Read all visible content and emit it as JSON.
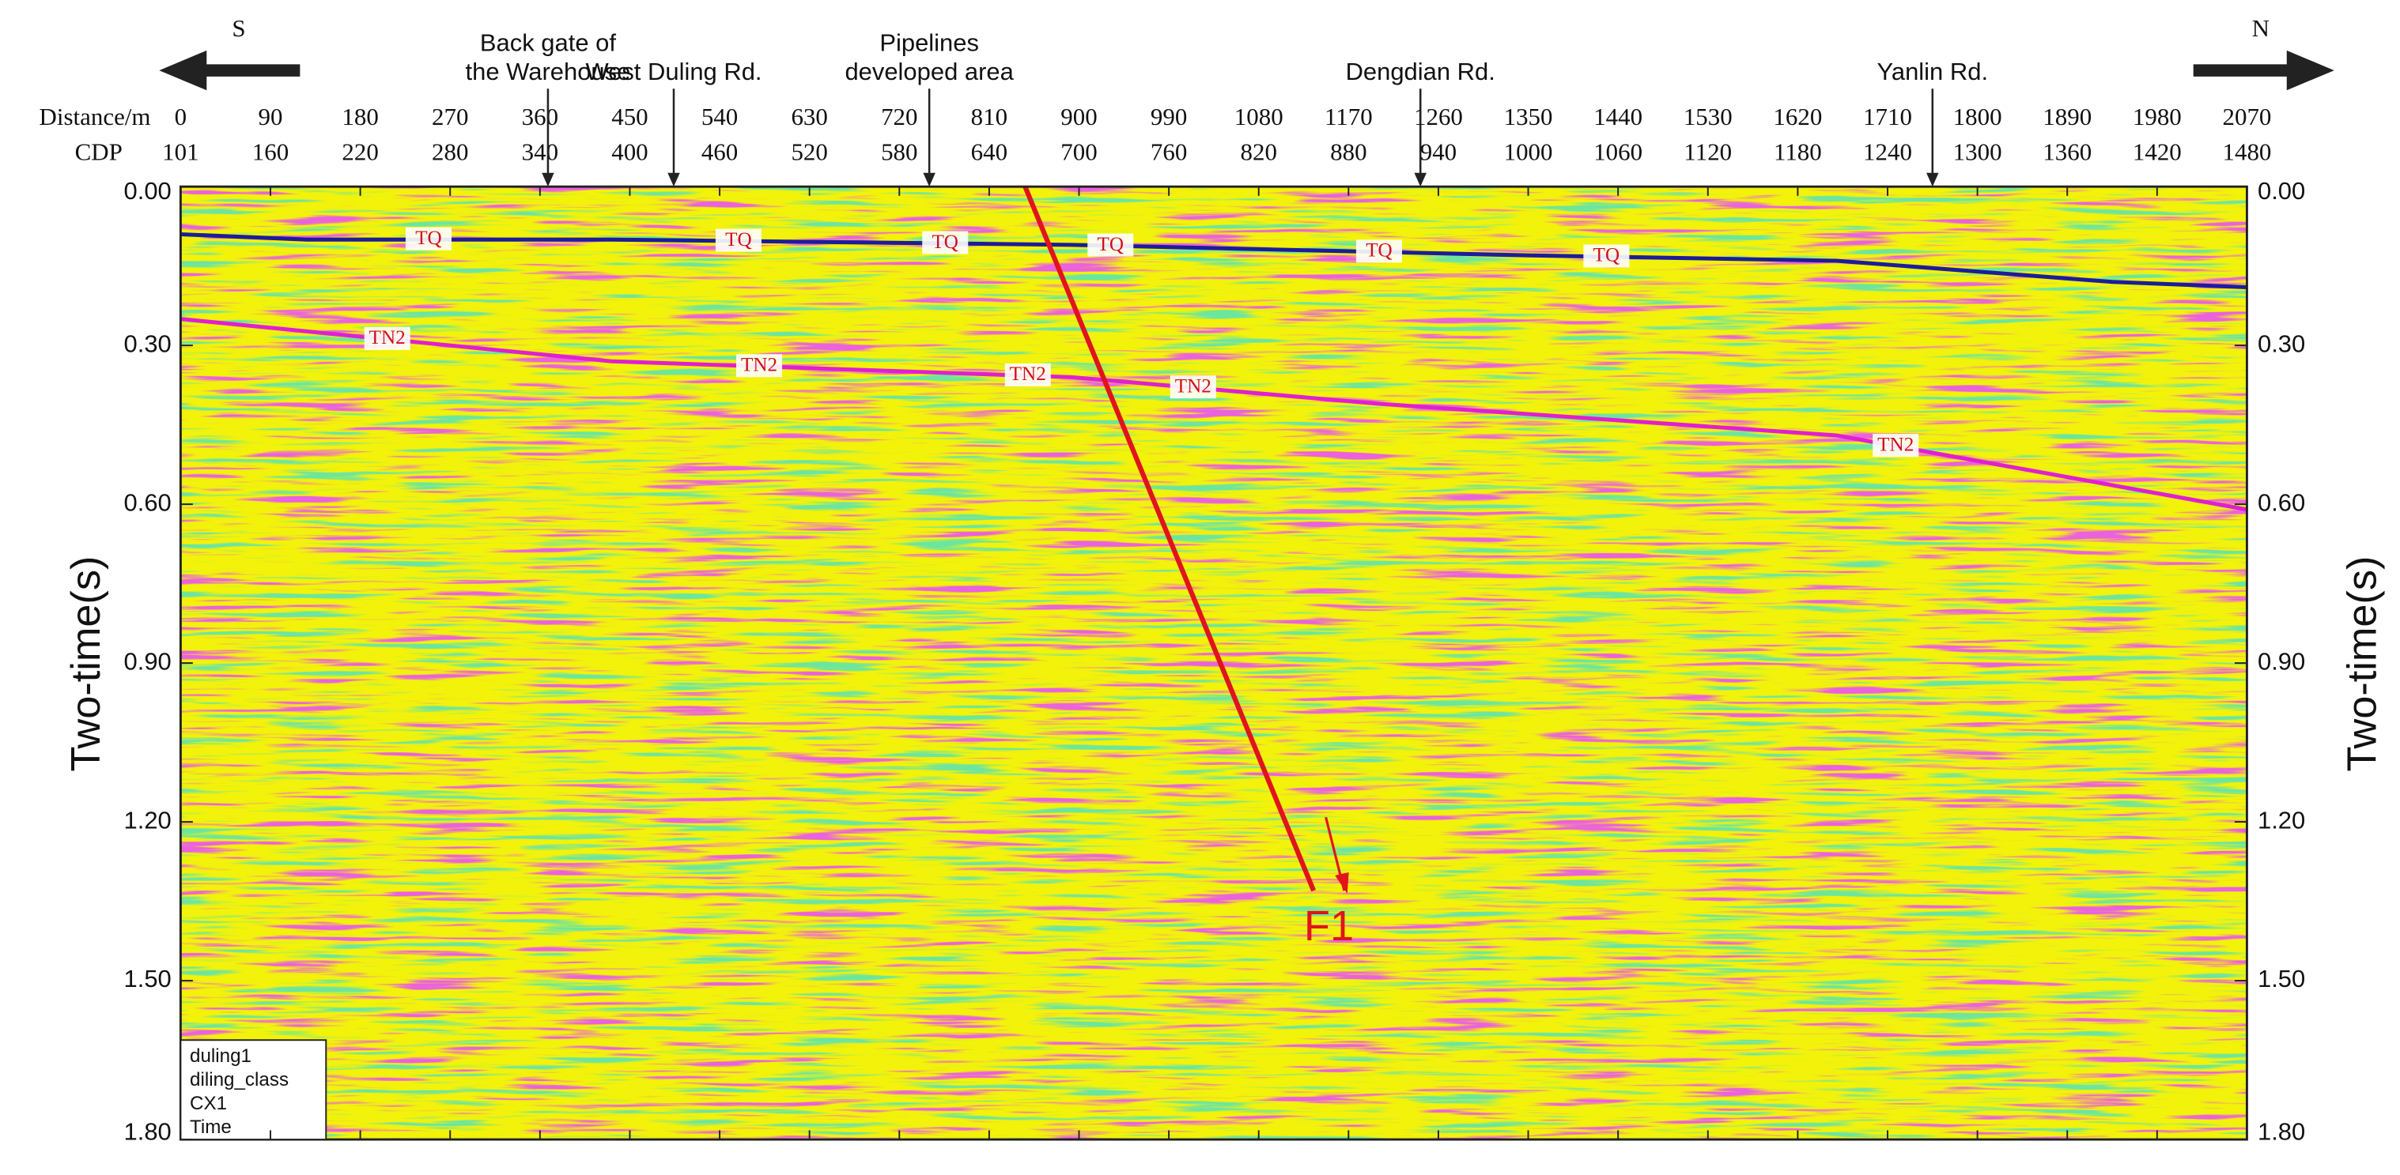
{
  "chart_data": {
    "type": "seismic-section",
    "direction_labels": {
      "left": "S",
      "right": "N"
    },
    "x_label": "Distance/m",
    "cdp_label": "CDP",
    "y_label": "Two-time(s)",
    "xlim": [
      0,
      2070
    ],
    "xticks": [
      0,
      90,
      180,
      270,
      360,
      450,
      540,
      630,
      720,
      810,
      900,
      990,
      1080,
      1170,
      1260,
      1350,
      1440,
      1530,
      1620,
      1710,
      1800,
      1890,
      1980,
      2070
    ],
    "cdp_ticks": [
      101,
      160,
      220,
      280,
      340,
      400,
      460,
      520,
      580,
      640,
      700,
      760,
      820,
      880,
      940,
      1000,
      1060,
      1120,
      1180,
      1240,
      1300,
      1360,
      1420,
      1480
    ],
    "ylim": [
      0,
      1.8
    ],
    "y_reversed": true,
    "yticks": [
      {
        "value": 0,
        "label": "0.00"
      },
      {
        "value": 0.3,
        "label": "0.30"
      },
      {
        "value": 0.6,
        "label": "0.60"
      },
      {
        "value": 0.9,
        "label": "0.90"
      },
      {
        "value": 1.2,
        "label": "1.20"
      },
      {
        "value": 1.5,
        "label": "1.50"
      },
      {
        "value": 1.8,
        "label": "1.80"
      }
    ],
    "locations": [
      {
        "label": [
          "Back gate of",
          "the Warehouse"
        ],
        "x": 368
      },
      {
        "label": [
          "West Duling Rd."
        ],
        "x": 494
      },
      {
        "label": [
          "Pipelines",
          "developed area"
        ],
        "x": 750
      },
      {
        "label": [
          "Dengdian Rd."
        ],
        "x": 1242
      },
      {
        "label": [
          "Yanlin Rd."
        ],
        "x": 1755
      }
    ],
    "series": [
      {
        "name": "TQ",
        "color": "#1c1c9c",
        "x": [
          0,
          126,
          432,
          893,
          1353,
          1659,
          1935,
          2070
        ],
        "values": [
          0.09,
          0.1,
          0.1,
          0.11,
          0.13,
          0.14,
          0.18,
          0.19
        ]
      },
      {
        "name": "TN2",
        "color": "#e01fd2",
        "x": [
          0,
          432,
          893,
          1199,
          1659,
          2070
        ],
        "values": [
          0.25,
          0.33,
          0.36,
          0.41,
          0.47,
          0.61
        ]
      }
    ],
    "fault": {
      "name": "F1",
      "color": "#e0141a",
      "x": [
        846,
        1135
      ],
      "values": [
        0,
        1.33
      ]
    },
    "info_box": [
      "duling1",
      "diling_class",
      "CX1",
      "Time"
    ]
  }
}
